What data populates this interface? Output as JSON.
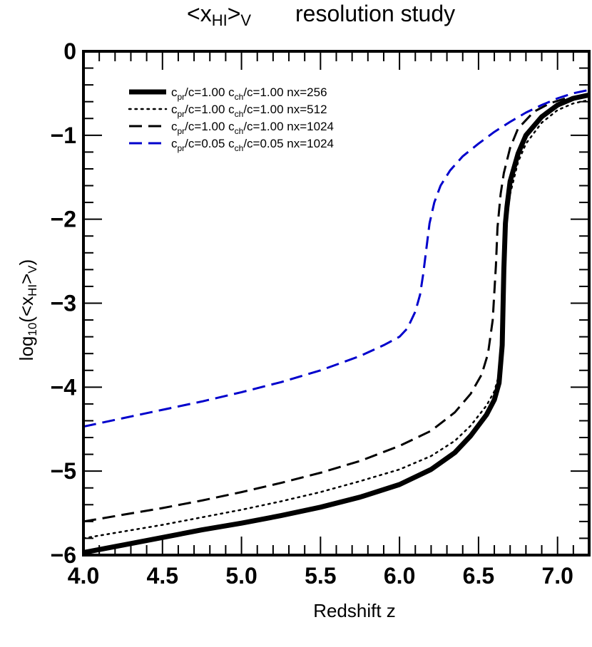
{
  "chart_data": {
    "type": "line",
    "title": {
      "left": {
        "pre": "<x",
        "sub": "HI",
        "mid": ">",
        "sub2": "V"
      },
      "right": "resolution study"
    },
    "xlabel": "Redshift z",
    "ylabel": {
      "pre": "log",
      "sub": "10",
      "mid": "(<x",
      "sub2": "HI",
      "mid2": ">",
      "sub3": "V",
      "post": ")"
    },
    "xlim": [
      4.0,
      7.2
    ],
    "ylim": [
      -6,
      0
    ],
    "x_ticks": [
      4.0,
      4.5,
      5.0,
      5.5,
      6.0,
      6.5,
      7.0
    ],
    "x_tick_labels": [
      "4.0",
      "4.5",
      "5.0",
      "5.5",
      "6.0",
      "6.5",
      "7.0"
    ],
    "y_ticks": [
      0,
      -1,
      -2,
      -3,
      -4,
      -5,
      -6
    ],
    "y_tick_labels": [
      "0",
      "−1",
      "−2",
      "−3",
      "−4",
      "−5",
      "−6"
    ],
    "grid": false,
    "legend_position": "top-left",
    "series": [
      {
        "legend": {
          "a": "c",
          "a_sub": "pr",
          "b": "/c=1.00  c",
          "b_sub": "ch",
          "c": "/c=1.00  nx=256"
        },
        "color": "#000000",
        "style": "thick-solid",
        "x": [
          4.0,
          4.25,
          4.5,
          4.75,
          5.0,
          5.25,
          5.5,
          5.75,
          6.0,
          6.2,
          6.35,
          6.45,
          6.55,
          6.6,
          6.63,
          6.65,
          6.66,
          6.67,
          6.68,
          6.7,
          6.75,
          6.8,
          6.9,
          7.0,
          7.1,
          7.2
        ],
        "y": [
          -5.97,
          -5.88,
          -5.79,
          -5.7,
          -5.62,
          -5.53,
          -5.43,
          -5.31,
          -5.16,
          -4.98,
          -4.78,
          -4.58,
          -4.33,
          -4.15,
          -3.95,
          -3.5,
          -2.6,
          -2.05,
          -1.85,
          -1.55,
          -1.22,
          -1.0,
          -0.78,
          -0.64,
          -0.56,
          -0.52
        ]
      },
      {
        "legend": {
          "a": "c",
          "a_sub": "pr",
          "b": "/c=1.00  c",
          "b_sub": "ch",
          "c": "/c=1.00  nx=512"
        },
        "color": "#000000",
        "style": "dotted",
        "x": [
          4.0,
          4.25,
          4.5,
          4.75,
          5.0,
          5.25,
          5.5,
          5.75,
          6.0,
          6.2,
          6.35,
          6.45,
          6.55,
          6.6,
          6.63,
          6.65,
          6.66,
          6.67,
          6.7,
          6.75,
          6.8,
          6.9,
          7.0,
          7.1,
          7.2
        ],
        "y": [
          -5.8,
          -5.72,
          -5.64,
          -5.55,
          -5.46,
          -5.36,
          -5.25,
          -5.12,
          -4.98,
          -4.82,
          -4.64,
          -4.46,
          -4.22,
          -4.05,
          -3.85,
          -3.4,
          -2.7,
          -2.15,
          -1.7,
          -1.32,
          -1.1,
          -0.85,
          -0.7,
          -0.62,
          -0.58
        ]
      },
      {
        "legend": {
          "a": "c",
          "a_sub": "pr",
          "b": "/c=1.00  c",
          "b_sub": "ch",
          "c": "/c=1.00  nx=1024"
        },
        "color": "#000000",
        "style": "dashed",
        "x": [
          4.0,
          4.25,
          4.5,
          4.75,
          5.0,
          5.25,
          5.5,
          5.75,
          6.0,
          6.2,
          6.35,
          6.45,
          6.52,
          6.56,
          6.59,
          6.61,
          6.62,
          6.64,
          6.66,
          6.7,
          6.75,
          6.85,
          6.95,
          7.05,
          7.2
        ],
        "y": [
          -5.6,
          -5.52,
          -5.44,
          -5.35,
          -5.25,
          -5.14,
          -5.02,
          -4.88,
          -4.7,
          -4.52,
          -4.3,
          -4.08,
          -3.85,
          -3.6,
          -3.2,
          -2.55,
          -2.1,
          -1.7,
          -1.45,
          -1.15,
          -0.92,
          -0.72,
          -0.62,
          -0.56,
          -0.52
        ]
      },
      {
        "legend": {
          "a": "c",
          "a_sub": "pr",
          "b": "/c=0.05  c",
          "b_sub": "ch",
          "c": "/c=0.05  nx=1024"
        },
        "color": "#0000cc",
        "style": "dashed",
        "x": [
          4.0,
          4.25,
          4.5,
          4.75,
          5.0,
          5.25,
          5.5,
          5.75,
          5.9,
          6.0,
          6.05,
          6.1,
          6.13,
          6.15,
          6.17,
          6.19,
          6.22,
          6.26,
          6.32,
          6.4,
          6.5,
          6.6,
          6.7,
          6.8,
          6.9,
          7.0,
          7.1,
          7.2
        ],
        "y": [
          -4.47,
          -4.37,
          -4.27,
          -4.17,
          -4.06,
          -3.94,
          -3.8,
          -3.63,
          -3.5,
          -3.4,
          -3.3,
          -3.1,
          -2.9,
          -2.65,
          -2.35,
          -2.05,
          -1.8,
          -1.6,
          -1.42,
          -1.25,
          -1.1,
          -0.96,
          -0.84,
          -0.73,
          -0.64,
          -0.56,
          -0.5,
          -0.46
        ]
      }
    ]
  }
}
